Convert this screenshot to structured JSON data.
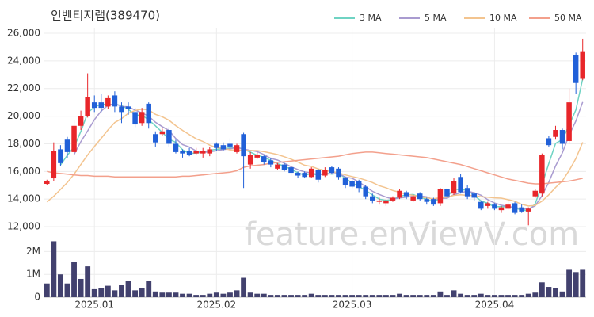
{
  "chart_data": {
    "type": "candlestick",
    "title": "인벤티지랩(389470)",
    "watermark": "feature.enViewV.com",
    "categories": [
      null,
      null,
      null,
      null,
      null,
      null,
      null,
      "2025.01",
      null,
      null,
      null,
      null,
      null,
      null,
      null,
      null,
      null,
      null,
      null,
      null,
      null,
      null,
      null,
      null,
      null,
      "2025.02",
      null,
      null,
      null,
      null,
      null,
      null,
      null,
      null,
      null,
      null,
      null,
      null,
      null,
      null,
      null,
      null,
      null,
      null,
      null,
      "2025.03",
      null,
      null,
      null,
      null,
      null,
      null,
      null,
      null,
      null,
      null,
      null,
      null,
      null,
      null,
      null,
      null,
      null,
      null,
      null,
      null,
      "2025.04",
      null,
      null,
      null,
      null,
      null,
      null,
      null,
      null,
      null,
      null,
      null,
      null,
      null
    ],
    "open": [
      15100,
      15500,
      17600,
      18300,
      17400,
      19300,
      20000,
      21000,
      21000,
      20700,
      21500,
      20700,
      20700,
      20300,
      19500,
      20900,
      18700,
      18700,
      19000,
      18000,
      17500,
      17500,
      17300,
      17300,
      17300,
      18000,
      17900,
      18000,
      17400,
      18700,
      16500,
      17000,
      17100,
      16800,
      16200,
      16500,
      16300,
      15900,
      15900,
      15600,
      16100,
      15700,
      16300,
      16200,
      15500,
      15300,
      15300,
      14900,
      14200,
      13800,
      13700,
      13900,
      14100,
      14500,
      13900,
      14400,
      14000,
      14000,
      13700,
      14700,
      14400,
      15600,
      14800,
      14400,
      13800,
      13500,
      13600,
      13200,
      13300,
      13700,
      13400,
      13100,
      14200,
      14400,
      18400,
      18500,
      19000,
      18200,
      24400,
      22700
    ],
    "high": [
      15400,
      18100,
      17900,
      18500,
      19700,
      20400,
      23100,
      21500,
      21600,
      21500,
      21800,
      21000,
      21000,
      20600,
      20600,
      21000,
      18900,
      19100,
      19200,
      18300,
      17600,
      17700,
      17700,
      17700,
      17800,
      18100,
      18100,
      18400,
      18000,
      18800,
      17400,
      17400,
      17200,
      17000,
      16600,
      16600,
      16400,
      16000,
      16000,
      16300,
      16200,
      16300,
      16400,
      16300,
      15600,
      15400,
      15400,
      15000,
      14400,
      14100,
      14000,
      14200,
      14700,
      14600,
      14300,
      14500,
      14100,
      14100,
      14800,
      14800,
      15500,
      15800,
      15000,
      14500,
      13900,
      13800,
      13700,
      13500,
      13900,
      13800,
      13600,
      13400,
      14700,
      17300,
      18600,
      19300,
      19100,
      22000,
      24600,
      25600
    ],
    "low": [
      15000,
      15300,
      16400,
      17000,
      17200,
      19000,
      19900,
      20300,
      20300,
      20500,
      20300,
      19500,
      20100,
      19200,
      19300,
      19100,
      17800,
      18600,
      17800,
      17300,
      17000,
      17100,
      17200,
      17000,
      17100,
      17500,
      17500,
      17500,
      17300,
      14800,
      16200,
      16900,
      16500,
      16300,
      16100,
      16000,
      15700,
      15500,
      15500,
      15500,
      15200,
      15600,
      15800,
      15400,
      14800,
      14800,
      14500,
      14000,
      13700,
      13600,
      13500,
      13800,
      14000,
      14000,
      13800,
      13900,
      13600,
      13500,
      13500,
      14000,
      14300,
      14400,
      14000,
      13900,
      13200,
      13300,
      13200,
      13000,
      13200,
      12900,
      13000,
      12100,
      14100,
      14200,
      17800,
      18300,
      17600,
      18000,
      21600,
      22600
    ],
    "close": [
      15300,
      17500,
      16600,
      17400,
      19300,
      20000,
      21400,
      20600,
      20600,
      21300,
      20700,
      20300,
      20500,
      19400,
      20300,
      19500,
      18100,
      18900,
      18000,
      17400,
      17300,
      17200,
      17500,
      17500,
      17600,
      17700,
      17600,
      17800,
      17900,
      17100,
      17200,
      17200,
      16700,
      16500,
      16500,
      16100,
      15900,
      15700,
      15600,
      16200,
      15400,
      16100,
      15900,
      15600,
      15000,
      14900,
      14800,
      14200,
      13900,
      13900,
      13900,
      14100,
      14600,
      14200,
      14200,
      14000,
      13800,
      13600,
      14700,
      14200,
      15300,
      14500,
      14200,
      14100,
      13300,
      13700,
      13300,
      13400,
      13600,
      13000,
      13100,
      13300,
      14600,
      17200,
      17900,
      19000,
      18000,
      21000,
      22400,
      24700
    ],
    "up_color": "#e8262a",
    "down_color": "#2160d8",
    "ylim": [
      11200,
      26400
    ],
    "yticks": [
      {
        "value": 12000,
        "label": "12,000"
      },
      {
        "value": 14000,
        "label": "14,000"
      },
      {
        "value": 16000,
        "label": "16,000"
      },
      {
        "value": 18000,
        "label": "18,000"
      },
      {
        "value": 20000,
        "label": "20,000"
      },
      {
        "value": 22000,
        "label": "22,000"
      },
      {
        "value": 24000,
        "label": "24,000"
      },
      {
        "value": 26000,
        "label": "26,000"
      }
    ],
    "grid": true,
    "legend": "top-right",
    "series": [
      {
        "name": "3 MA",
        "color": "#6fd3c3",
        "values": [
          null,
          null,
          16467,
          17167,
          17767,
          18900,
          20233,
          20667,
          20867,
          20833,
          20867,
          20767,
          20500,
          20067,
          20067,
          19733,
          19300,
          18833,
          18333,
          18100,
          17567,
          17300,
          17333,
          17400,
          17533,
          17600,
          17633,
          17700,
          17767,
          17600,
          17400,
          17167,
          17033,
          16800,
          16567,
          16367,
          16167,
          15900,
          15733,
          15833,
          15733,
          15900,
          15800,
          15867,
          15500,
          15167,
          14900,
          14633,
          14300,
          14000,
          13900,
          13967,
          14200,
          14300,
          14333,
          14133,
          14000,
          13800,
          14033,
          14167,
          14733,
          14667,
          14667,
          14267,
          13867,
          13700,
          13433,
          13467,
          13433,
          13333,
          13233,
          13133,
          13667,
          15033,
          16567,
          18033,
          18300,
          19333,
          20467,
          22700
        ]
      },
      {
        "name": "5 MA",
        "color": "#a99bd0",
        "values": [
          null,
          null,
          null,
          null,
          17220,
          18160,
          18940,
          19740,
          20380,
          20780,
          20920,
          20700,
          20680,
          20440,
          20240,
          20000,
          19560,
          19240,
          18960,
          18380,
          17940,
          17760,
          17480,
          17380,
          17420,
          17500,
          17580,
          17640,
          17720,
          17620,
          17520,
          17440,
          17220,
          16940,
          16820,
          16600,
          16340,
          16140,
          15960,
          15900,
          15760,
          15800,
          15840,
          15840,
          15600,
          15500,
          15240,
          14900,
          14560,
          14340,
          14140,
          14000,
          14080,
          14140,
          14200,
          14220,
          14160,
          13960,
          14060,
          14060,
          14320,
          14460,
          14580,
          14460,
          14280,
          13960,
          13720,
          13560,
          13460,
          13400,
          13280,
          13280,
          13520,
          14240,
          15220,
          16400,
          17340,
          18620,
          19660,
          21020
        ]
      },
      {
        "name": "10 MA",
        "color": "#f3c48f",
        "values": [
          13800,
          14200,
          14700,
          15200,
          15800,
          16500,
          17200,
          17800,
          18400,
          19000,
          19540,
          19820,
          20210,
          20410,
          20510,
          20460,
          20130,
          19960,
          19700,
          19310,
          18970,
          18660,
          18360,
          18170,
          17900,
          17720,
          17670,
          17560,
          17550,
          17520,
          17510,
          17510,
          17430,
          17330,
          17220,
          17060,
          16890,
          16680,
          16450,
          16360,
          16180,
          16070,
          15990,
          15900,
          15750,
          15630,
          15520,
          15370,
          15200,
          14970,
          14820,
          14620,
          14490,
          14350,
          14270,
          14180,
          14080,
          14020,
          14100,
          14130,
          14270,
          14310,
          14270,
          14260,
          14170,
          14140,
          14090,
          14070,
          13960,
          13840,
          13620,
          13500,
          13540,
          13850,
          14310,
          14840,
          15310,
          16070,
          16940,
          18110
        ]
      },
      {
        "name": "50 MA",
        "color": "#f3a08c",
        "values": [
          16000,
          15900,
          15850,
          15800,
          15750,
          15700,
          15700,
          15650,
          15650,
          15650,
          15600,
          15600,
          15600,
          15600,
          15600,
          15600,
          15600,
          15600,
          15600,
          15600,
          15650,
          15650,
          15700,
          15750,
          15800,
          15850,
          15900,
          15950,
          16050,
          16300,
          16400,
          16450,
          16500,
          16600,
          16650,
          16700,
          16750,
          16800,
          16850,
          16900,
          16950,
          17000,
          17050,
          17100,
          17200,
          17300,
          17350,
          17400,
          17400,
          17350,
          17300,
          17250,
          17200,
          17150,
          17100,
          17050,
          17000,
          16900,
          16800,
          16700,
          16600,
          16500,
          16350,
          16200,
          16050,
          15900,
          15750,
          15600,
          15450,
          15350,
          15250,
          15150,
          15100,
          15100,
          15150,
          15200,
          15250,
          15300,
          15400,
          15500
        ]
      }
    ],
    "volume": {
      "color": "#42416e",
      "values": [
        600000,
        2450000,
        1000000,
        600000,
        1550000,
        800000,
        1350000,
        350000,
        400000,
        500000,
        300000,
        550000,
        700000,
        300000,
        400000,
        700000,
        250000,
        200000,
        200000,
        200000,
        150000,
        150000,
        100000,
        100000,
        150000,
        200000,
        150000,
        200000,
        300000,
        850000,
        200000,
        150000,
        150000,
        100000,
        100000,
        100000,
        100000,
        100000,
        100000,
        150000,
        100000,
        100000,
        100000,
        100000,
        100000,
        100000,
        100000,
        100000,
        100000,
        100000,
        100000,
        100000,
        150000,
        100000,
        100000,
        100000,
        100000,
        100000,
        250000,
        100000,
        300000,
        150000,
        100000,
        100000,
        150000,
        100000,
        100000,
        100000,
        100000,
        100000,
        100000,
        150000,
        200000,
        650000,
        450000,
        400000,
        250000,
        1200000,
        1100000,
        1200000
      ],
      "ylim": [
        0,
        2500000
      ],
      "yticks": [
        0,
        {
          "value": 1000000,
          "label": "1M"
        },
        {
          "value": 2000000,
          "label": "2M"
        }
      ]
    }
  }
}
